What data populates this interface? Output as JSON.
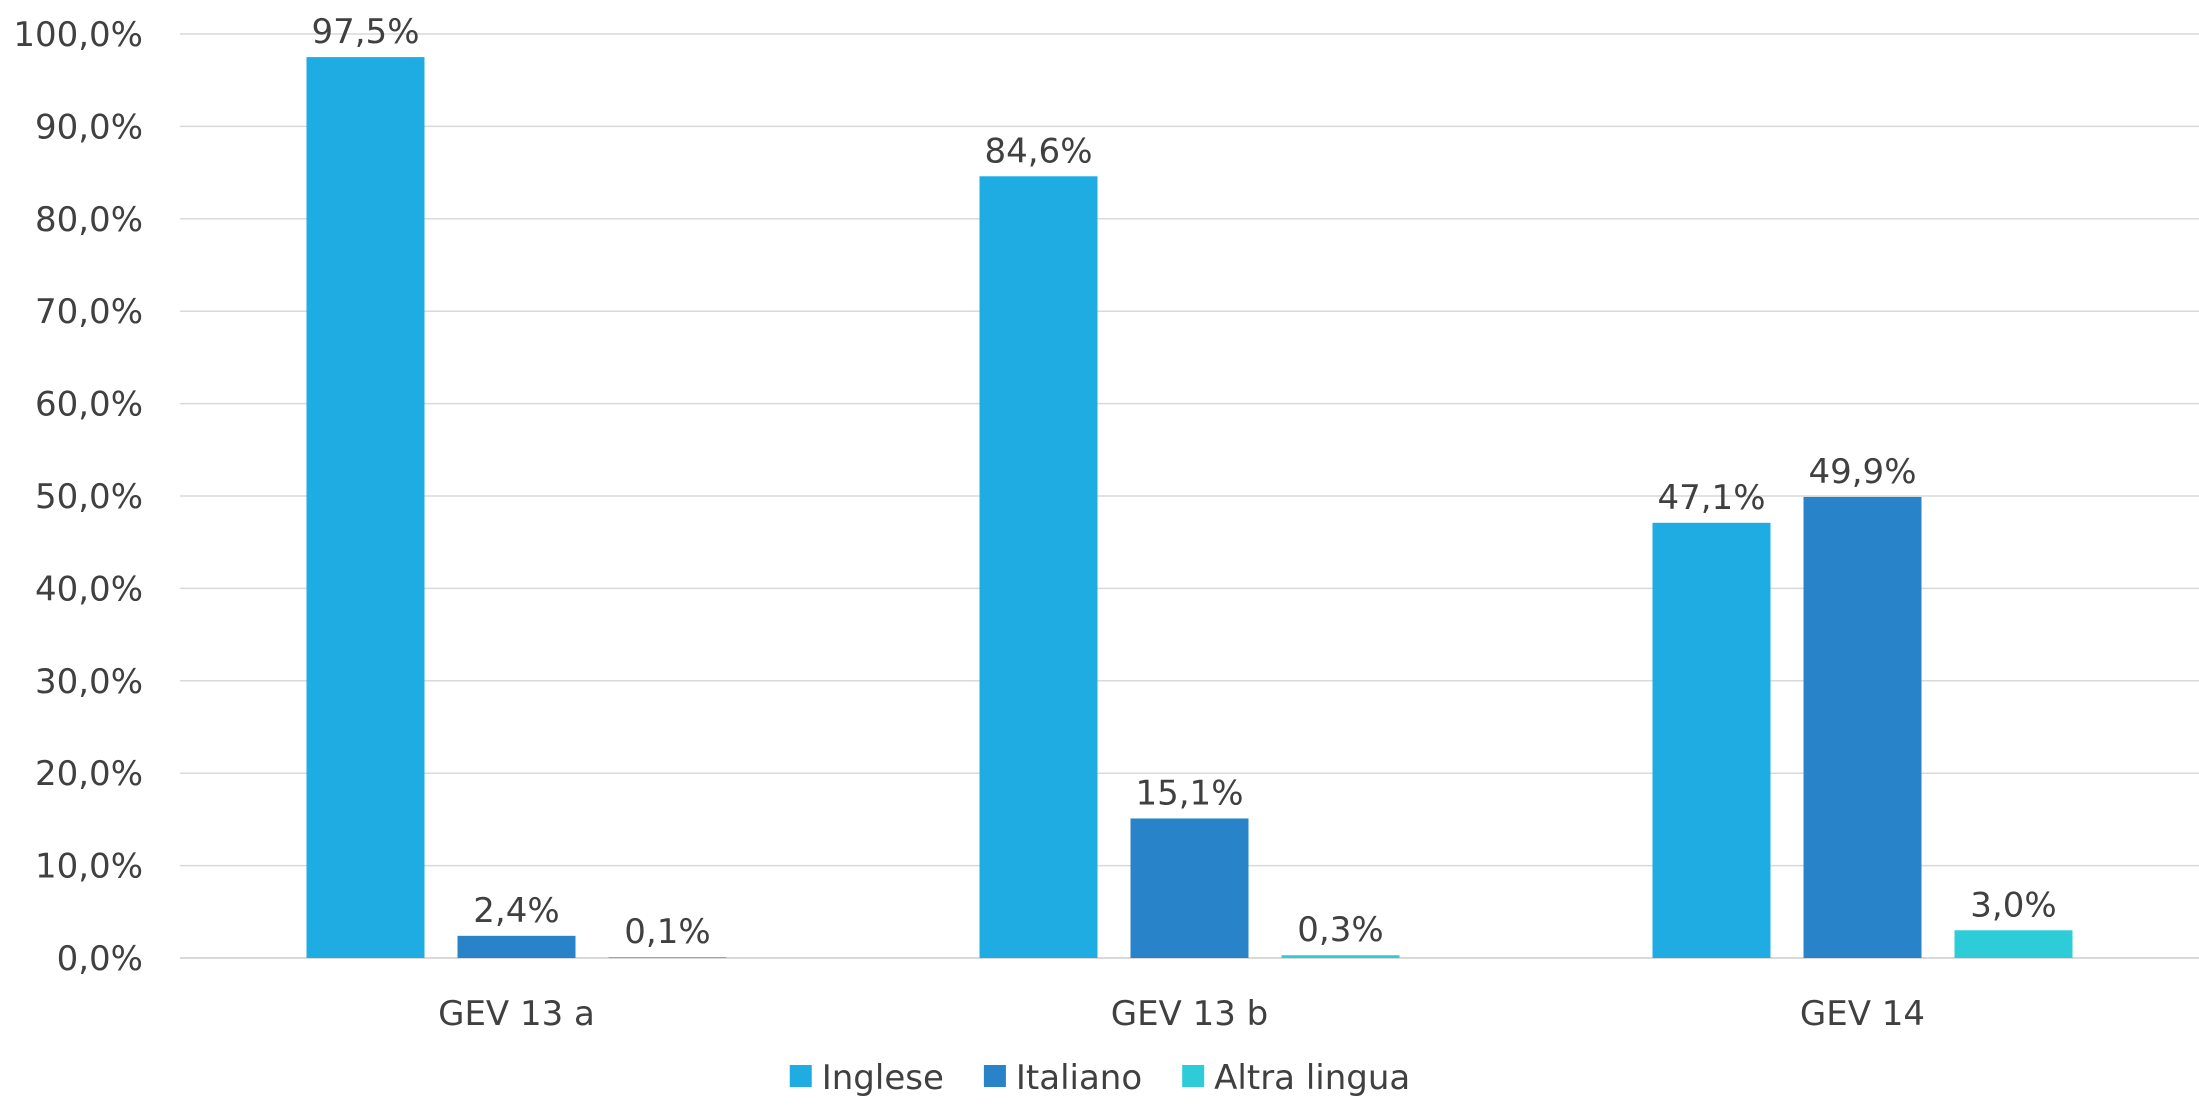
{
  "chart_data": {
    "type": "bar",
    "title": "",
    "xlabel": "",
    "ylabel": "",
    "categories": [
      "GEV 13 a",
      "GEV 13 b",
      "GEV 14"
    ],
    "series": [
      {
        "name": "Inglese",
        "color": "#1FACE3",
        "values": [
          97.5,
          84.6,
          47.1
        ],
        "labels": [
          "97,5%",
          "84,6%",
          "47,1%"
        ]
      },
      {
        "name": "Italiano",
        "color": "#2883C8",
        "values": [
          2.4,
          15.1,
          49.9
        ],
        "labels": [
          "2,4%",
          "15,1%",
          "49,9%"
        ]
      },
      {
        "name": "Altra lingua",
        "color": "#2ECCD8",
        "values": [
          0.1,
          0.3,
          3.0
        ],
        "labels": [
          "0,1%",
          "0,3%",
          "3,0%"
        ]
      }
    ],
    "ylim": [
      0,
      100
    ],
    "yticks": [
      0,
      10,
      20,
      30,
      40,
      50,
      60,
      70,
      80,
      90,
      100
    ],
    "ytick_labels": [
      "0,0%",
      "10,0%",
      "20,0%",
      "30,0%",
      "40,0%",
      "50,0%",
      "60,0%",
      "70,0%",
      "80,0%",
      "90,0%",
      "100,0%"
    ],
    "grid": true,
    "legend_position": "bottom",
    "colors": {
      "grid": "#D9D9D9",
      "text": "#404040"
    }
  }
}
